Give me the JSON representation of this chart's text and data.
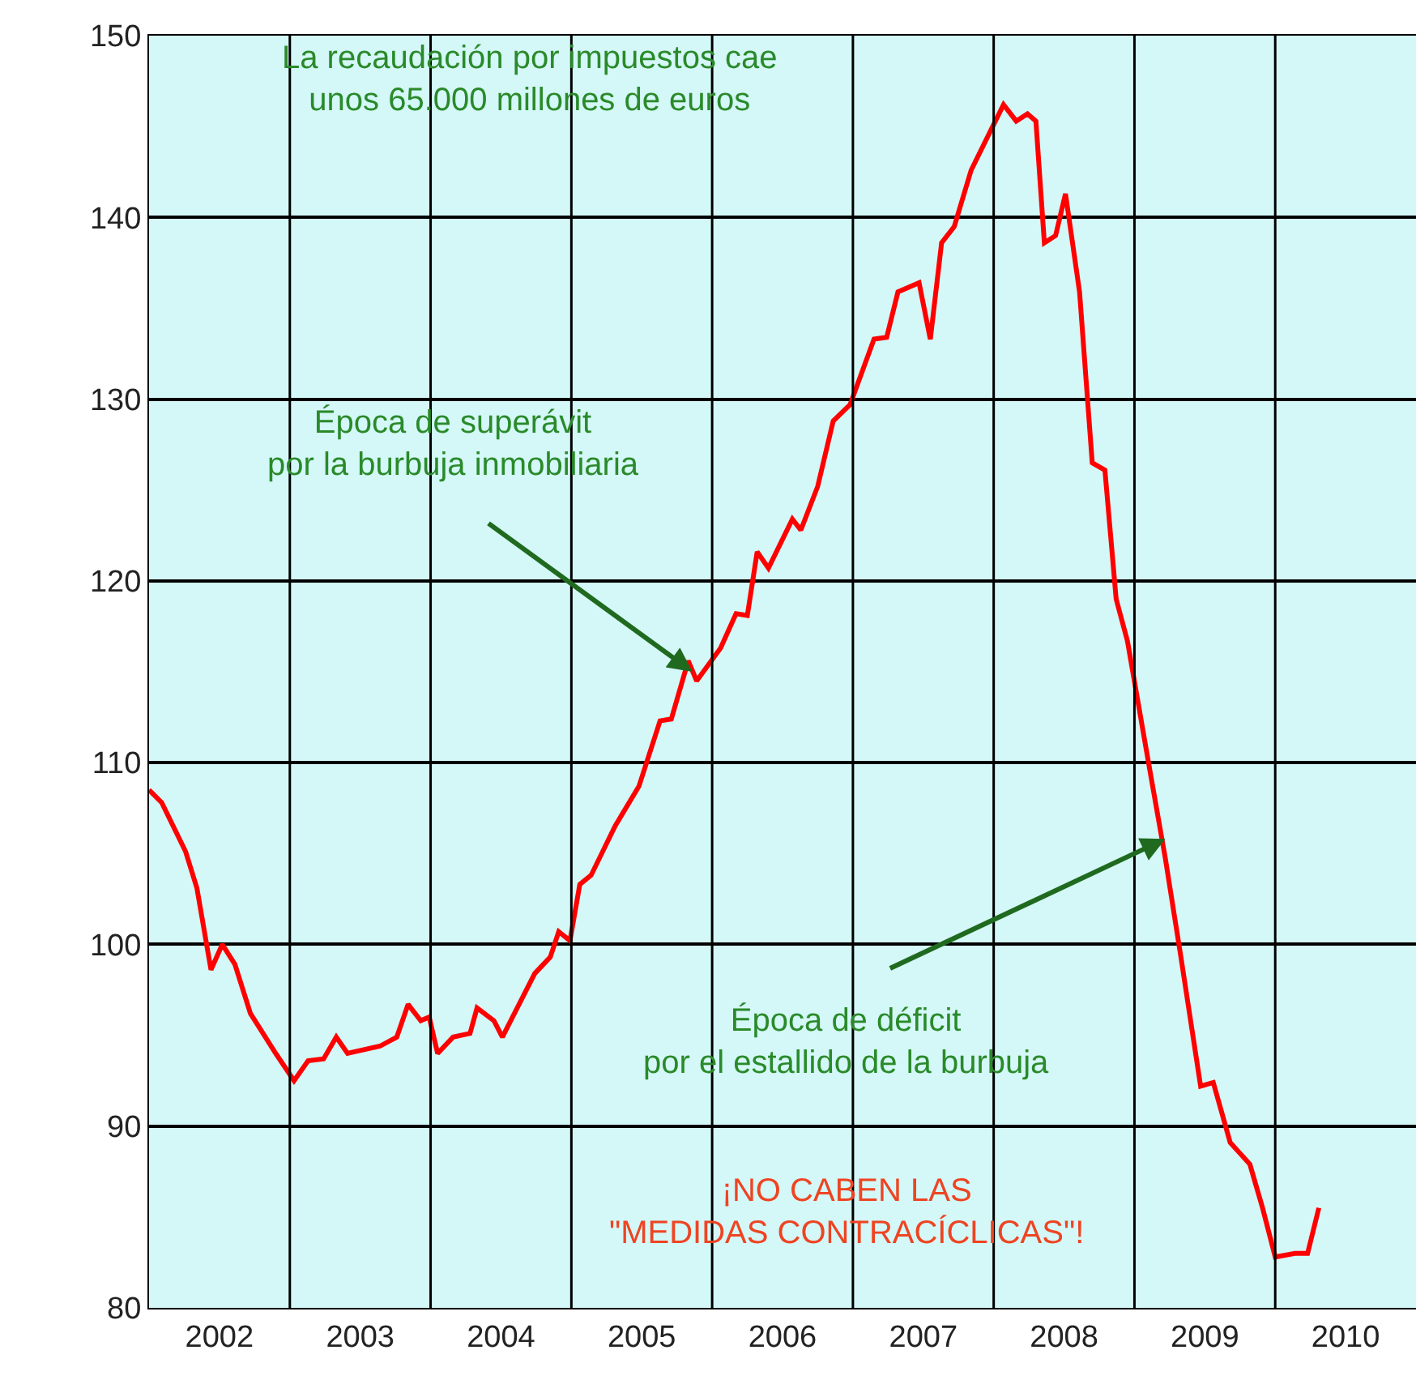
{
  "chart_data": {
    "type": "line",
    "x": [
      2002.0,
      2002.09,
      2002.26,
      2002.34,
      2002.44,
      2002.52,
      2002.61,
      2002.72,
      2002.9,
      2003.03,
      2003.13,
      2003.24,
      2003.33,
      2003.41,
      2003.64,
      2003.76,
      2003.84,
      2003.93,
      2003.99,
      2004.05,
      2004.16,
      2004.28,
      2004.33,
      2004.45,
      2004.51,
      2004.74,
      2004.85,
      2004.91,
      2004.99,
      2005.06,
      2005.14,
      2005.31,
      2005.48,
      2005.63,
      2005.71,
      2005.83,
      2005.89,
      2006.06,
      2006.17,
      2006.25,
      2006.32,
      2006.4,
      2006.57,
      2006.63,
      2006.75,
      2006.86,
      2006.98,
      2007.15,
      2007.24,
      2007.32,
      2007.47,
      2007.55,
      2007.63,
      2007.72,
      2007.84,
      2007.98,
      2008.07,
      2008.16,
      2008.24,
      2008.3,
      2008.36,
      2008.44,
      2008.51,
      2008.61,
      2008.7,
      2008.79,
      2008.87,
      2008.95,
      2009.1,
      2009.22,
      2009.33,
      2009.47,
      2009.56,
      2009.68,
      2009.82,
      2009.91,
      2010.0,
      2010.14,
      2010.23,
      2010.31
    ],
    "series": [
      {
        "color": "#ff0000",
        "values": [
          108.5,
          107.8,
          105.1,
          103.1,
          98.6,
          100.0,
          98.9,
          96.2,
          94.0,
          92.5,
          93.6,
          93.7,
          94.9,
          94.0,
          94.4,
          94.9,
          96.7,
          95.8,
          96.0,
          94.0,
          94.9,
          95.1,
          96.5,
          95.8,
          94.9,
          98.4,
          99.3,
          100.7,
          100.2,
          103.3,
          103.8,
          106.5,
          108.7,
          112.3,
          112.4,
          115.6,
          114.5,
          116.3,
          118.2,
          118.1,
          121.6,
          120.7,
          123.4,
          122.8,
          125.2,
          128.8,
          129.7,
          133.3,
          133.4,
          135.9,
          136.4,
          133.3,
          138.6,
          139.5,
          142.6,
          144.8,
          146.2,
          145.3,
          145.7,
          145.3,
          138.6,
          139.0,
          141.3,
          135.9,
          126.5,
          126.1,
          119.0,
          116.7,
          110.0,
          104.7,
          99.3,
          92.2,
          92.4,
          89.1,
          87.9,
          85.5,
          82.8,
          83.0,
          83.0,
          85.5
        ]
      }
    ],
    "xlim": [
      2002,
      2011
    ],
    "xticks": [
      {
        "value": 2002.5,
        "label": "2002"
      },
      {
        "value": 2003,
        "label": null
      },
      {
        "value": 2003.5,
        "label": "2003"
      },
      {
        "value": 2004,
        "label": null
      },
      {
        "value": 2004.5,
        "label": "2004"
      },
      {
        "value": 2005,
        "label": null
      },
      {
        "value": 2005.5,
        "label": "2005"
      },
      {
        "value": 2006,
        "label": null
      },
      {
        "value": 2006.5,
        "label": "2006"
      },
      {
        "value": 2007,
        "label": null
      },
      {
        "value": 2007.5,
        "label": "2007"
      },
      {
        "value": 2008,
        "label": null
      },
      {
        "value": 2008.5,
        "label": "2008"
      },
      {
        "value": 2009,
        "label": null
      },
      {
        "value": 2009.5,
        "label": "2009"
      },
      {
        "value": 2010,
        "label": null
      },
      {
        "value": 2010.5,
        "label": "2010"
      }
    ],
    "ylim": [
      80,
      150
    ],
    "yticks": [
      80,
      90,
      100,
      110,
      120,
      130,
      140,
      150
    ],
    "grid": true,
    "marker": "none",
    "line_style": "solid",
    "annotations": [
      "La recaudación por impuestos cae\nunos 65.000 millones de euros",
      {
        "text": "Época de superávit\npor la burbuja inmobiliaria",
        "x": 2005.86,
        "y": 115.0
      },
      {
        "text": "Época de déficit\npor el estallido de la burbuja",
        "x": 2009.22,
        "y": 105.8
      },
      "¡NO CABEN LAS\n\"MEDIDAS CONTRACÍCLICAS\"!"
    ]
  }
}
